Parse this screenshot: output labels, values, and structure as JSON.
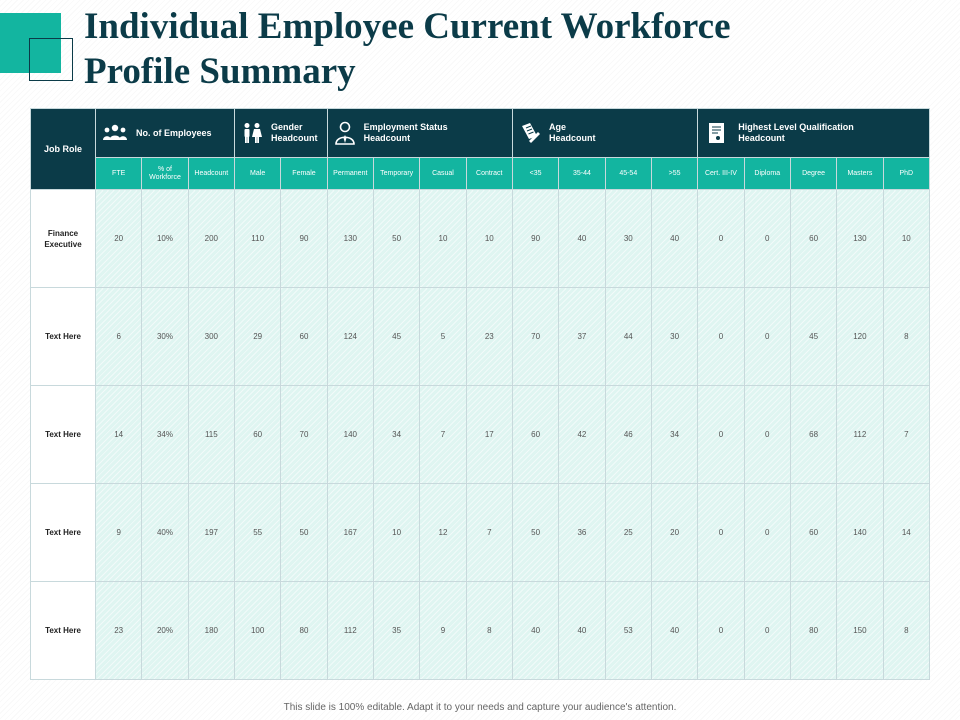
{
  "title_line1": "Individual Employee Current Workforce",
  "title_line2": "Profile Summary",
  "table": {
    "job_role_header": "Job Role",
    "groups": [
      {
        "label_line1": "No. of Employees",
        "label_line2": "",
        "icon": "people-group-icon"
      },
      {
        "label_line1": "Gender",
        "label_line2": "Headcount",
        "icon": "male-female-icon"
      },
      {
        "label_line1": "Employment Status",
        "label_line2": "Headcount",
        "icon": "employee-tie-icon"
      },
      {
        "label_line1": "Age",
        "label_line2": "Headcount",
        "icon": "document-pen-icon"
      },
      {
        "label_line1": "Highest Level Qualification",
        "label_line2": "Headcount",
        "icon": "certificate-icon"
      }
    ],
    "subheaders": [
      "FTE",
      "% of Workforce",
      "Headcount",
      "Male",
      "Female",
      "Permanent",
      "Temporary",
      "Casual",
      "Contract",
      "<35",
      "35-44",
      "45-54",
      ">55",
      "Cert. III-IV",
      "Diploma",
      "Degree",
      "Masters",
      "PhD"
    ],
    "rows": [
      {
        "role": "Finance Executive",
        "values": [
          "20",
          "10%",
          "200",
          "110",
          "90",
          "130",
          "50",
          "10",
          "10",
          "90",
          "40",
          "30",
          "40",
          "0",
          "0",
          "60",
          "130",
          "10"
        ]
      },
      {
        "role": "Text Here",
        "values": [
          "6",
          "30%",
          "300",
          "29",
          "60",
          "124",
          "45",
          "5",
          "23",
          "70",
          "37",
          "44",
          "30",
          "0",
          "0",
          "45",
          "120",
          "8"
        ]
      },
      {
        "role": "Text Here",
        "values": [
          "14",
          "34%",
          "115",
          "60",
          "70",
          "140",
          "34",
          "7",
          "17",
          "60",
          "42",
          "46",
          "34",
          "0",
          "0",
          "68",
          "112",
          "7"
        ]
      },
      {
        "role": "Text Here",
        "values": [
          "9",
          "40%",
          "197",
          "55",
          "50",
          "167",
          "10",
          "12",
          "7",
          "50",
          "36",
          "25",
          "20",
          "0",
          "0",
          "60",
          "140",
          "14"
        ]
      },
      {
        "role": "Text Here",
        "values": [
          "23",
          "20%",
          "180",
          "100",
          "80",
          "112",
          "35",
          "9",
          "8",
          "40",
          "40",
          "53",
          "40",
          "0",
          "0",
          "80",
          "150",
          "8"
        ]
      }
    ]
  },
  "footer": "This slide is 100% editable. Adapt it to your needs and capture your audience's attention.",
  "colors": {
    "dark": "#0b3b48",
    "teal": "#13b5a0",
    "cell": "#dff5f1"
  }
}
